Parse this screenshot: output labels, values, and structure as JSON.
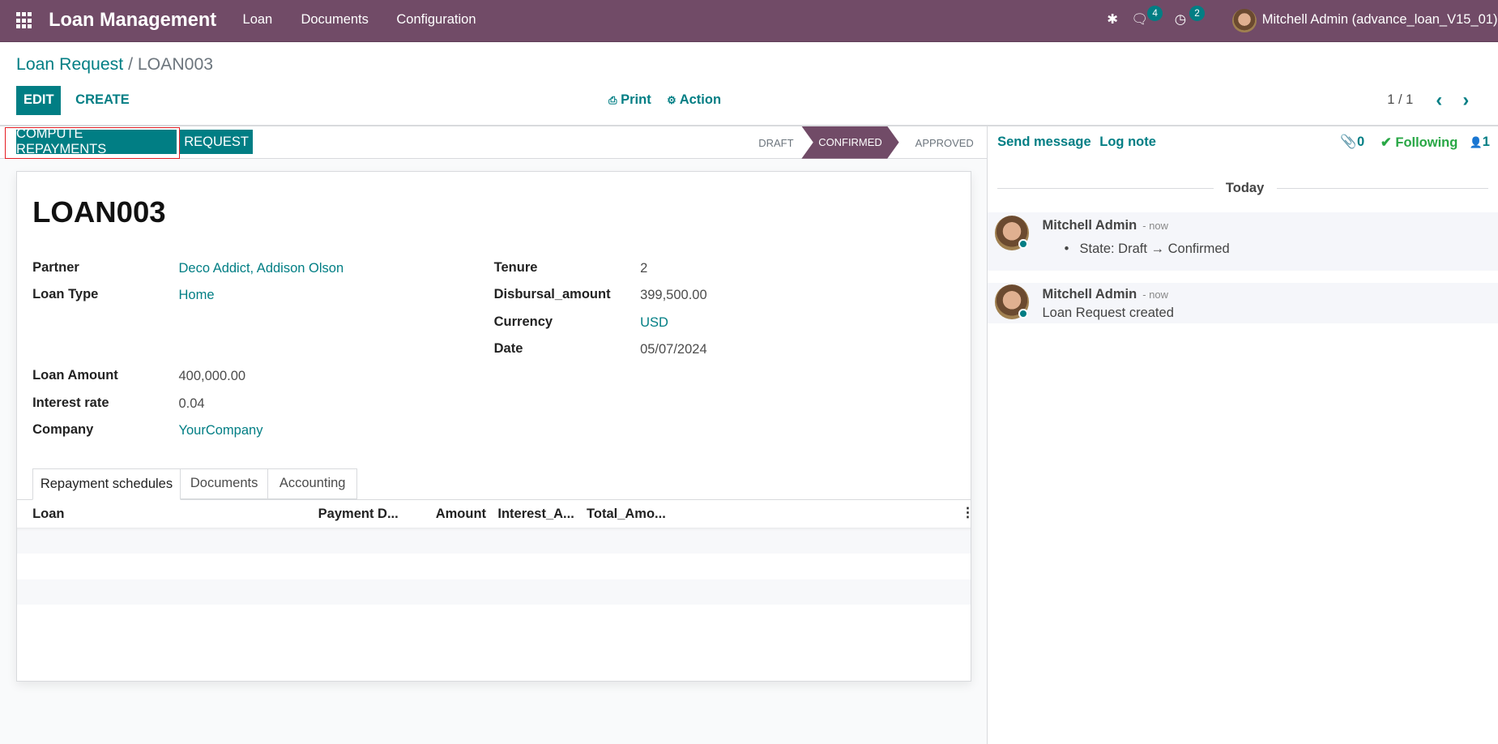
{
  "navbar": {
    "app_title": "Loan Management",
    "menu": [
      "Loan",
      "Documents",
      "Configuration"
    ],
    "messages_count": "4",
    "activities_count": "2",
    "user": "Mitchell Admin (advance_loan_V15_01)",
    "color": "#714b67"
  },
  "breadcrumb": {
    "parent": "Loan Request",
    "current": "/ LOAN003"
  },
  "control": {
    "edit": "EDIT",
    "create": "CREATE",
    "print": "Print",
    "action": "Action",
    "pager": "1 / 1"
  },
  "statusbar": {
    "buttons": [
      "COMPUTE REPAYMENTS",
      "REQUEST"
    ],
    "stages": [
      "DRAFT",
      "CONFIRMED",
      "APPROVED"
    ],
    "active_stage": "CONFIRMED"
  },
  "form": {
    "title": "LOAN003",
    "left": [
      {
        "label": "Partner",
        "value": "Deco Addict, Addison Olson"
      },
      {
        "label": "Loan Type",
        "value": "Home"
      },
      {
        "label": "Loan Amount",
        "value": "400,000.00"
      },
      {
        "label": "Interest rate",
        "value": "0.04"
      },
      {
        "label": "Company",
        "value": "YourCompany"
      }
    ],
    "right": [
      {
        "label": "Tenure",
        "value": "2"
      },
      {
        "label": "Disbursal_amount",
        "value": "399,500.00"
      },
      {
        "label": "Currency",
        "value": "USD"
      },
      {
        "label": "Date",
        "value": "05/07/2024"
      }
    ],
    "tabs": [
      "Repayment schedules",
      "Documents",
      "Accounting"
    ],
    "columns": [
      "Loan",
      "Payment D...",
      "Amount",
      "Interest_A...",
      "Total_Amo..."
    ]
  },
  "chatter": {
    "send_message": "Send message",
    "log_note": "Log note",
    "attachments": "0",
    "following": "Following",
    "followers": "1",
    "date_sep": "Today",
    "messages": [
      {
        "author": "Mitchell Admin",
        "time": "- now",
        "body": "State: Draft → Confirmed"
      },
      {
        "author": "Mitchell Admin",
        "time": "- now",
        "body": "Loan Request created"
      }
    ]
  }
}
